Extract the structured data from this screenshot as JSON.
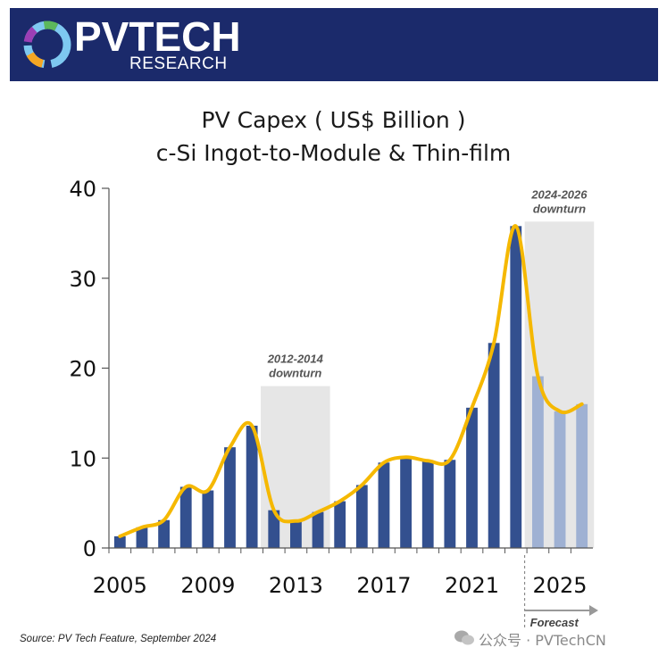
{
  "header": {
    "logo_letters_pv": "PV",
    "logo_word_tech": "TECH",
    "logo_sub": "RESEARCH",
    "bg_color": "#1b2a6b"
  },
  "chart_data": {
    "type": "bar",
    "title": "PV Capex ( US$ Billion )",
    "subtitle": "c-Si Ingot-to-Module & Thin-film",
    "x": [
      2005,
      2006,
      2007,
      2008,
      2009,
      2010,
      2011,
      2012,
      2013,
      2014,
      2015,
      2016,
      2017,
      2018,
      2019,
      2020,
      2021,
      2022,
      2023,
      2024,
      2025,
      2026
    ],
    "values": [
      1.3,
      2.3,
      3.1,
      6.8,
      6.4,
      11.2,
      13.6,
      4.2,
      3.0,
      4.0,
      5.2,
      7.0,
      9.5,
      10.1,
      9.7,
      9.8,
      15.6,
      22.8,
      35.8,
      19.1,
      15.2,
      16.0
    ],
    "forecast_from": 2024,
    "ylim": [
      0,
      40
    ],
    "yticks": [
      0,
      10,
      20,
      30,
      40
    ],
    "xticks": [
      2005,
      2009,
      2013,
      2017,
      2021,
      2025
    ],
    "trend_line": [
      1.3,
      2.3,
      3.1,
      6.8,
      6.4,
      11.2,
      13.6,
      4.2,
      3.0,
      4.0,
      5.2,
      7.0,
      9.5,
      10.1,
      9.7,
      9.8,
      15.6,
      22.8,
      35.8,
      19.1,
      15.2,
      16.0
    ],
    "shaded_periods": [
      {
        "start": 2012,
        "end": 2014,
        "label_top": "2012-2014",
        "label_bottom": "downturn"
      },
      {
        "start": 2024,
        "end": 2026,
        "label_top": "2024-2026",
        "label_bottom": "downturn"
      }
    ],
    "forecast_label": "Forecast",
    "colors": {
      "bar": "#33508f",
      "bar_forecast": "#9fb1d3",
      "line": "#f5b800",
      "shade": "#e6e6e6",
      "axis": "#555555"
    },
    "grid": false,
    "legend": "none"
  },
  "footer": {
    "source": "Source: PV Tech Feature, September 2024",
    "watermark": "公众号 · PVTechCN"
  }
}
